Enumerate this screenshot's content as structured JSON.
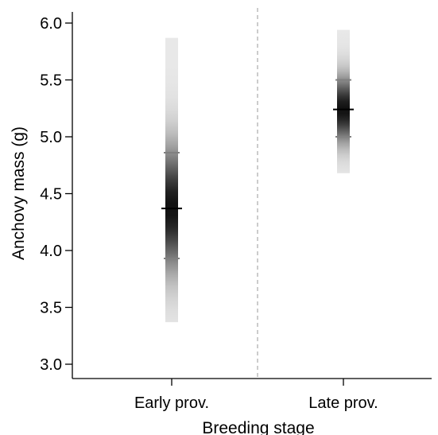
{
  "chart_data": {
    "type": "gradient-interval",
    "xlabel": "Breeding stage",
    "ylabel": "Anchovy mass (g)",
    "ylim": [
      2.93,
      6.13
    ],
    "yticks": [
      "3.0",
      "3.5",
      "4.0",
      "4.5",
      "5.0",
      "5.5",
      "6.0"
    ],
    "categories": [
      "Early prov.",
      "Late prov."
    ],
    "groups": [
      {
        "category": "Early prov.",
        "mean": 4.37,
        "lower_band": 3.93,
        "upper_band": 4.86,
        "min": 3.37,
        "max": 5.87
      },
      {
        "category": "Late prov.",
        "mean": 5.24,
        "lower_band": 5.0,
        "upper_band": 5.5,
        "min": 4.68,
        "max": 5.94
      }
    ],
    "separator": "dashed",
    "grid": false,
    "colors": {
      "mean_line": "#000000",
      "band_line": "#808080",
      "separator": "#bbbbbb",
      "gradient_dark": "#111111",
      "gradient_light": "#e8e8e8"
    }
  }
}
